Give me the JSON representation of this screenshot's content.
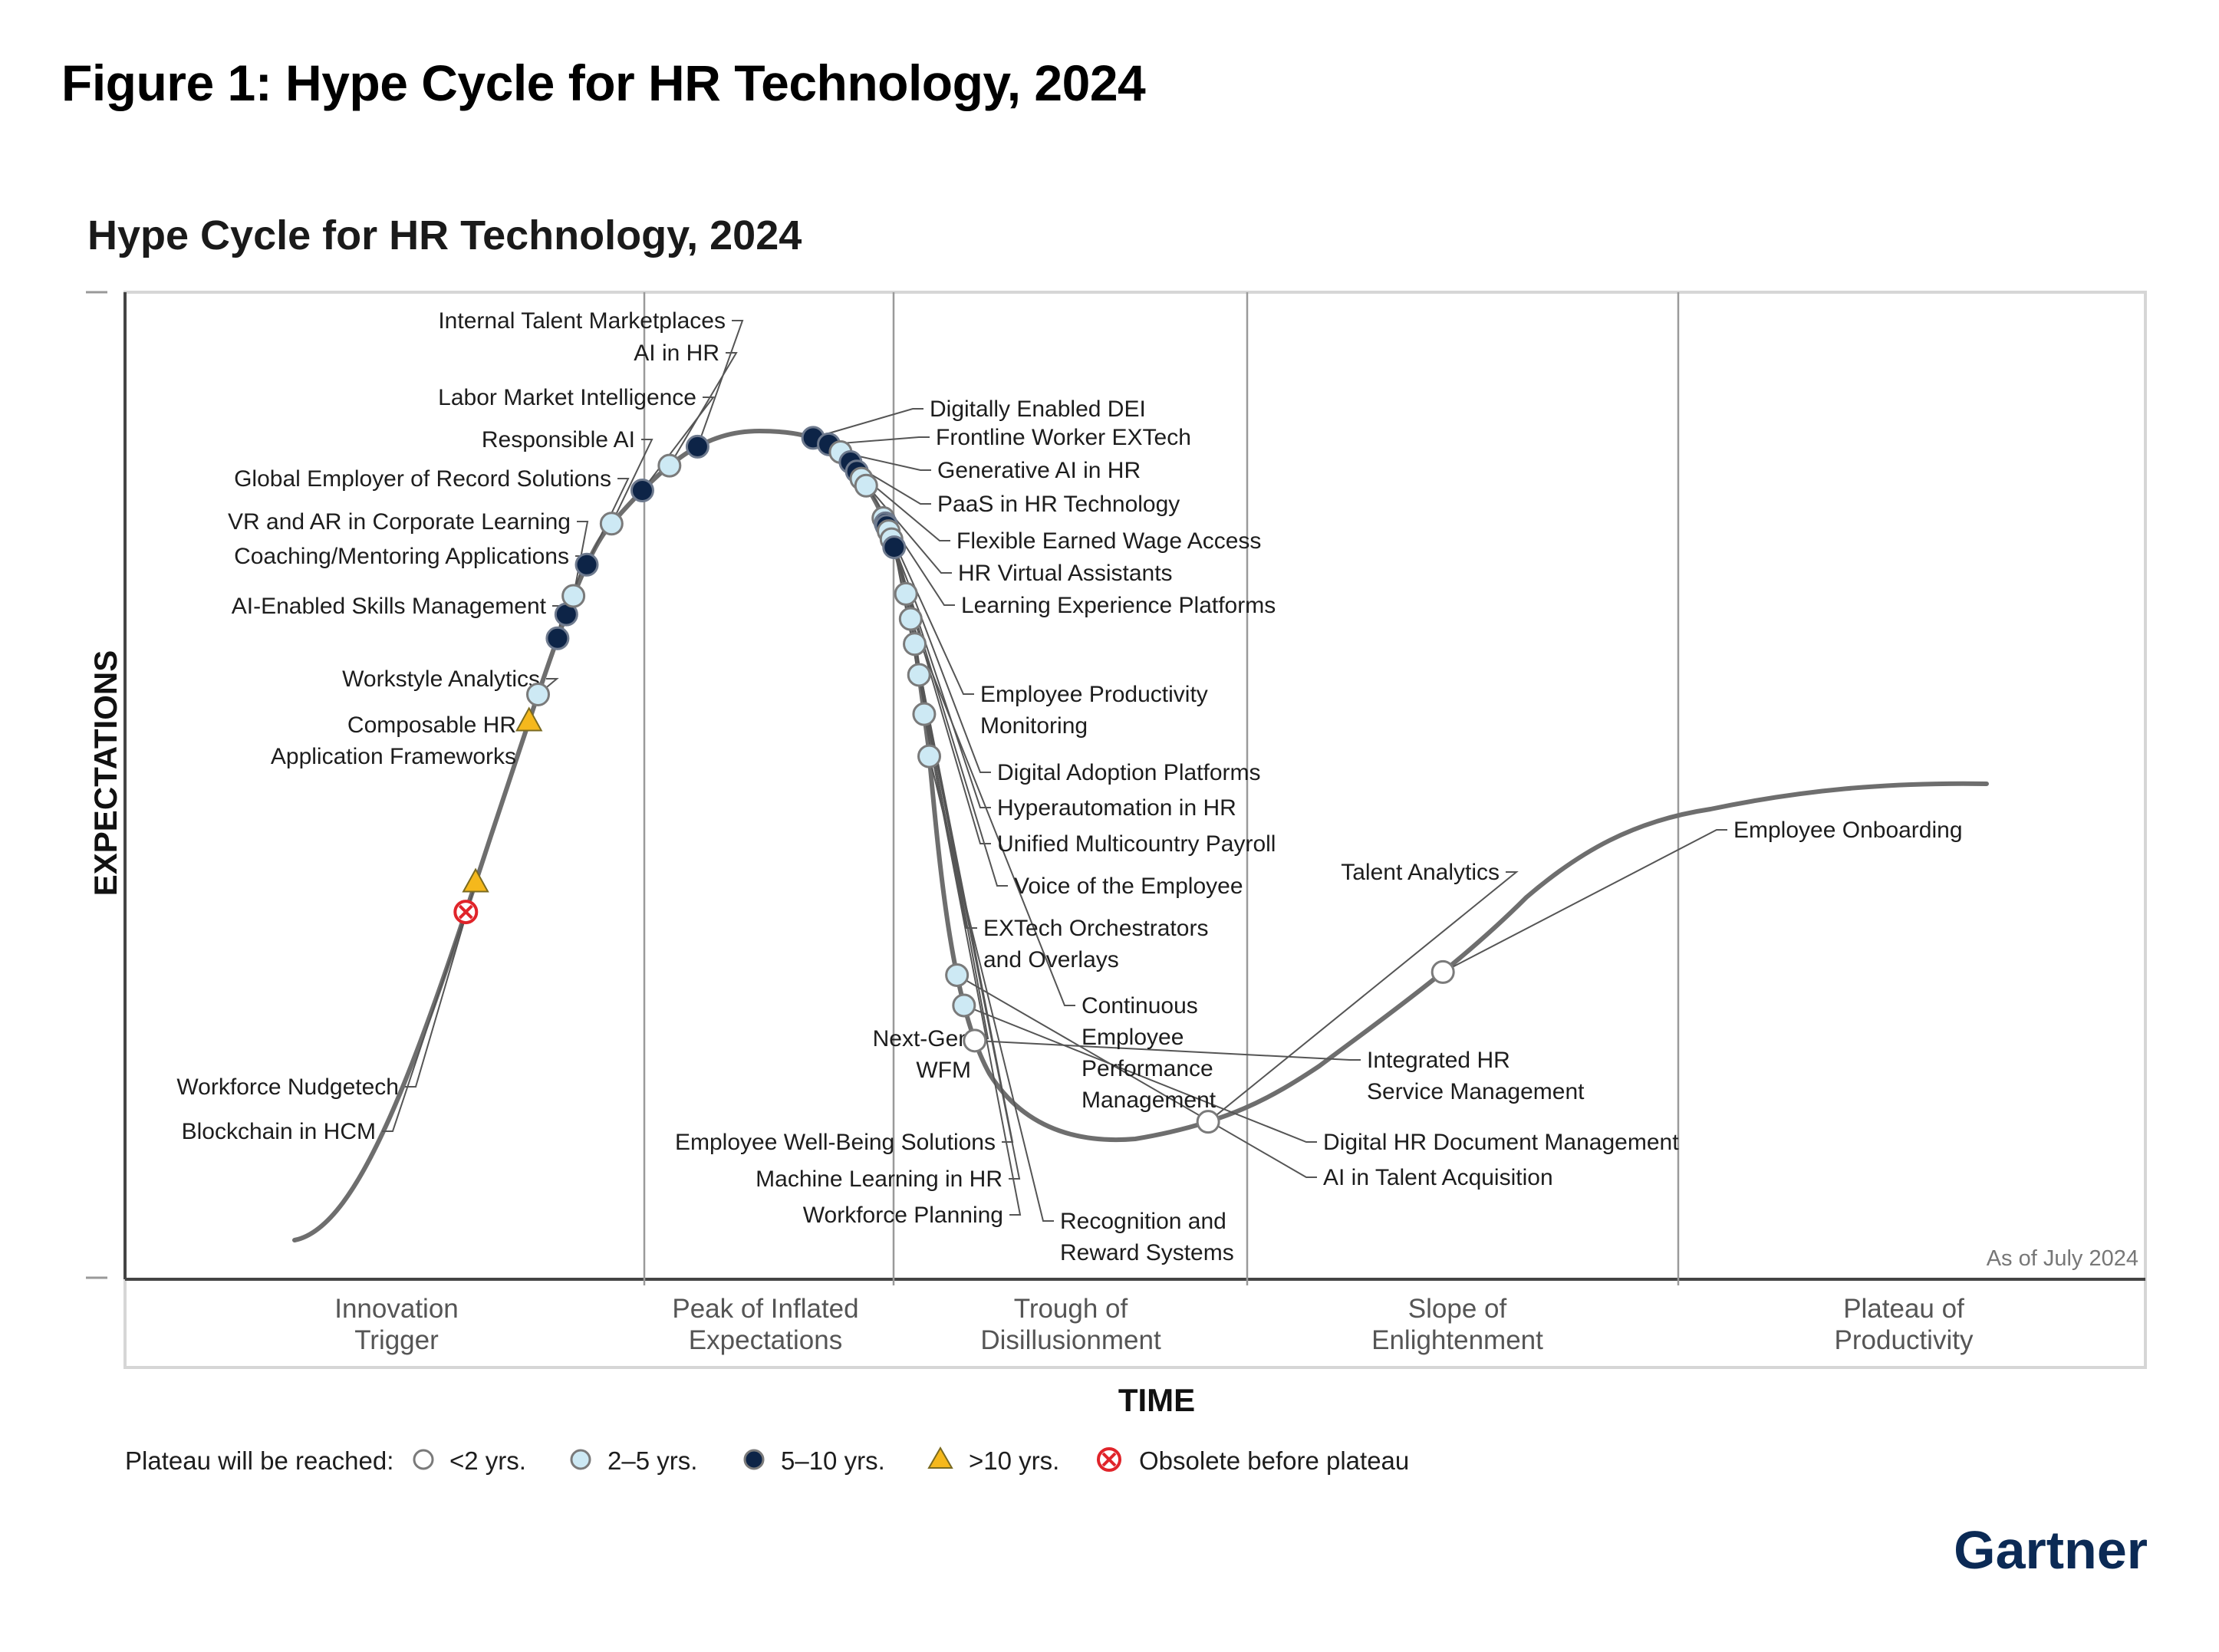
{
  "figure_title": "Figure 1: Hype Cycle for HR Technology, 2024",
  "brand": "Gartner",
  "colors": {
    "lt2": "#ffffff",
    "y2to5": "#cde9f4",
    "y5to10": "#0d2447",
    "gt10": "#f5b81c",
    "obsolete": "#e0242a",
    "curve": "#6e6e6e"
  },
  "chart_data": {
    "type": "scatter",
    "title": "Hype Cycle for HR Technology, 2024",
    "xlabel": "TIME",
    "ylabel": "EXPECTATIONS",
    "as_of": "As of July 2024",
    "phases": [
      "Innovation Trigger",
      "Peak of Inflated Expectations",
      "Trough of Disillusionment",
      "Slope of Enlightenment",
      "Plateau of Productivity"
    ],
    "legend_title": "Plateau will be reached:",
    "legend": [
      {
        "key": "lt2",
        "label": "<2 yrs."
      },
      {
        "key": "y2to5",
        "label": "2–5 yrs."
      },
      {
        "key": "y5to10",
        "label": "5–10 yrs."
      },
      {
        "key": "gt10",
        "label": ">10 yrs."
      },
      {
        "key": "obsolete",
        "label": "Obsolete before plateau"
      }
    ],
    "points": [
      {
        "name": "Blockchain in HCM",
        "cat": "obsolete",
        "t": 0.134
      },
      {
        "name": "Workforce Nudgetech",
        "cat": "gt10",
        "t": 0.145
      },
      {
        "name": "Composable HR Application Frameworks",
        "cat": "gt10",
        "t": 0.205
      },
      {
        "name": "Workstyle Analytics",
        "cat": "y2to5",
        "t": 0.215
      },
      {
        "name": "AI-Enabled Skills Management",
        "cat": "y5to10",
        "t": 0.236
      },
      {
        "name": "Coaching/Mentoring Applications",
        "cat": "y5to10",
        "t": 0.245
      },
      {
        "name": "VR and AR in Corporate Learning",
        "cat": "y2to5",
        "t": 0.252
      },
      {
        "name": "Global Employer of Record Solutions",
        "cat": "y5to10",
        "t": 0.264
      },
      {
        "name": "Responsible AI",
        "cat": "y2to5",
        "t": 0.281
      },
      {
        "name": "Labor Market Intelligence",
        "cat": "y5to10",
        "t": 0.297
      },
      {
        "name": "AI in HR",
        "cat": "y2to5",
        "t": 0.31
      },
      {
        "name": "Internal Talent Marketplaces",
        "cat": "y5to10",
        "t": 0.322
      },
      {
        "name": "Digitally Enabled DEI",
        "cat": "y5to10",
        "t": 0.364
      },
      {
        "name": "Frontline Worker EXTech",
        "cat": "y5to10",
        "t": 0.37
      },
      {
        "name": "Generative AI in HR",
        "cat": "y2to5",
        "t": 0.375
      },
      {
        "name": "PaaS in HR Technology",
        "cat": "y5to10",
        "t": 0.38
      },
      {
        "name": "Flexible Earned Wage Access",
        "cat": "y5to10",
        "t": 0.384
      },
      {
        "name": "HR Virtual Assistants",
        "cat": "y2to5",
        "t": 0.387
      },
      {
        "name": "Learning Experience Platforms",
        "cat": "y2to5",
        "t": 0.39
      },
      {
        "name": "Employee Productivity Monitoring",
        "cat": "y2to5",
        "t": 0.403
      },
      {
        "name": "Digital Adoption Platforms",
        "cat": "y5to10",
        "t": 0.405
      },
      {
        "name": "Hyperautomation in HR",
        "cat": "y5to10",
        "t": 0.406
      },
      {
        "name": "Unified Multicountry Payroll",
        "cat": "y2to5",
        "t": 0.408
      },
      {
        "name": "Voice of the Employee",
        "cat": "y2to5",
        "t": 0.411
      },
      {
        "name": "EXTech Orchestrators and Overlays",
        "cat": "y5to10",
        "t": 0.414
      },
      {
        "name": "Next-Gen WFM",
        "cat": "y2to5",
        "t": 0.431
      },
      {
        "name": "Continuous Employee Performance Management",
        "cat": "y2to5",
        "t": 0.44
      },
      {
        "name": "Employee Well-Being Solutions",
        "cat": "y2to5",
        "t": 0.449
      },
      {
        "name": "Machine Learning in HR",
        "cat": "y2to5",
        "t": 0.46
      },
      {
        "name": "Workforce Planning",
        "cat": "y2to5",
        "t": 0.474
      },
      {
        "name": "Recognition and Reward Systems",
        "cat": "y2to5",
        "t": 0.489
      },
      {
        "name": "AI in Talent Acquisition",
        "cat": "y2to5",
        "t": 0.567
      },
      {
        "name": "Digital HR Document Management",
        "cat": "y2to5",
        "t": 0.578
      },
      {
        "name": "Integrated HR Service Management",
        "cat": "lt2",
        "t": 0.591
      },
      {
        "name": "Talent Analytics",
        "cat": "lt2",
        "t": 0.69
      },
      {
        "name": "Employee Onboarding",
        "cat": "lt2",
        "t": 0.789
      }
    ]
  }
}
